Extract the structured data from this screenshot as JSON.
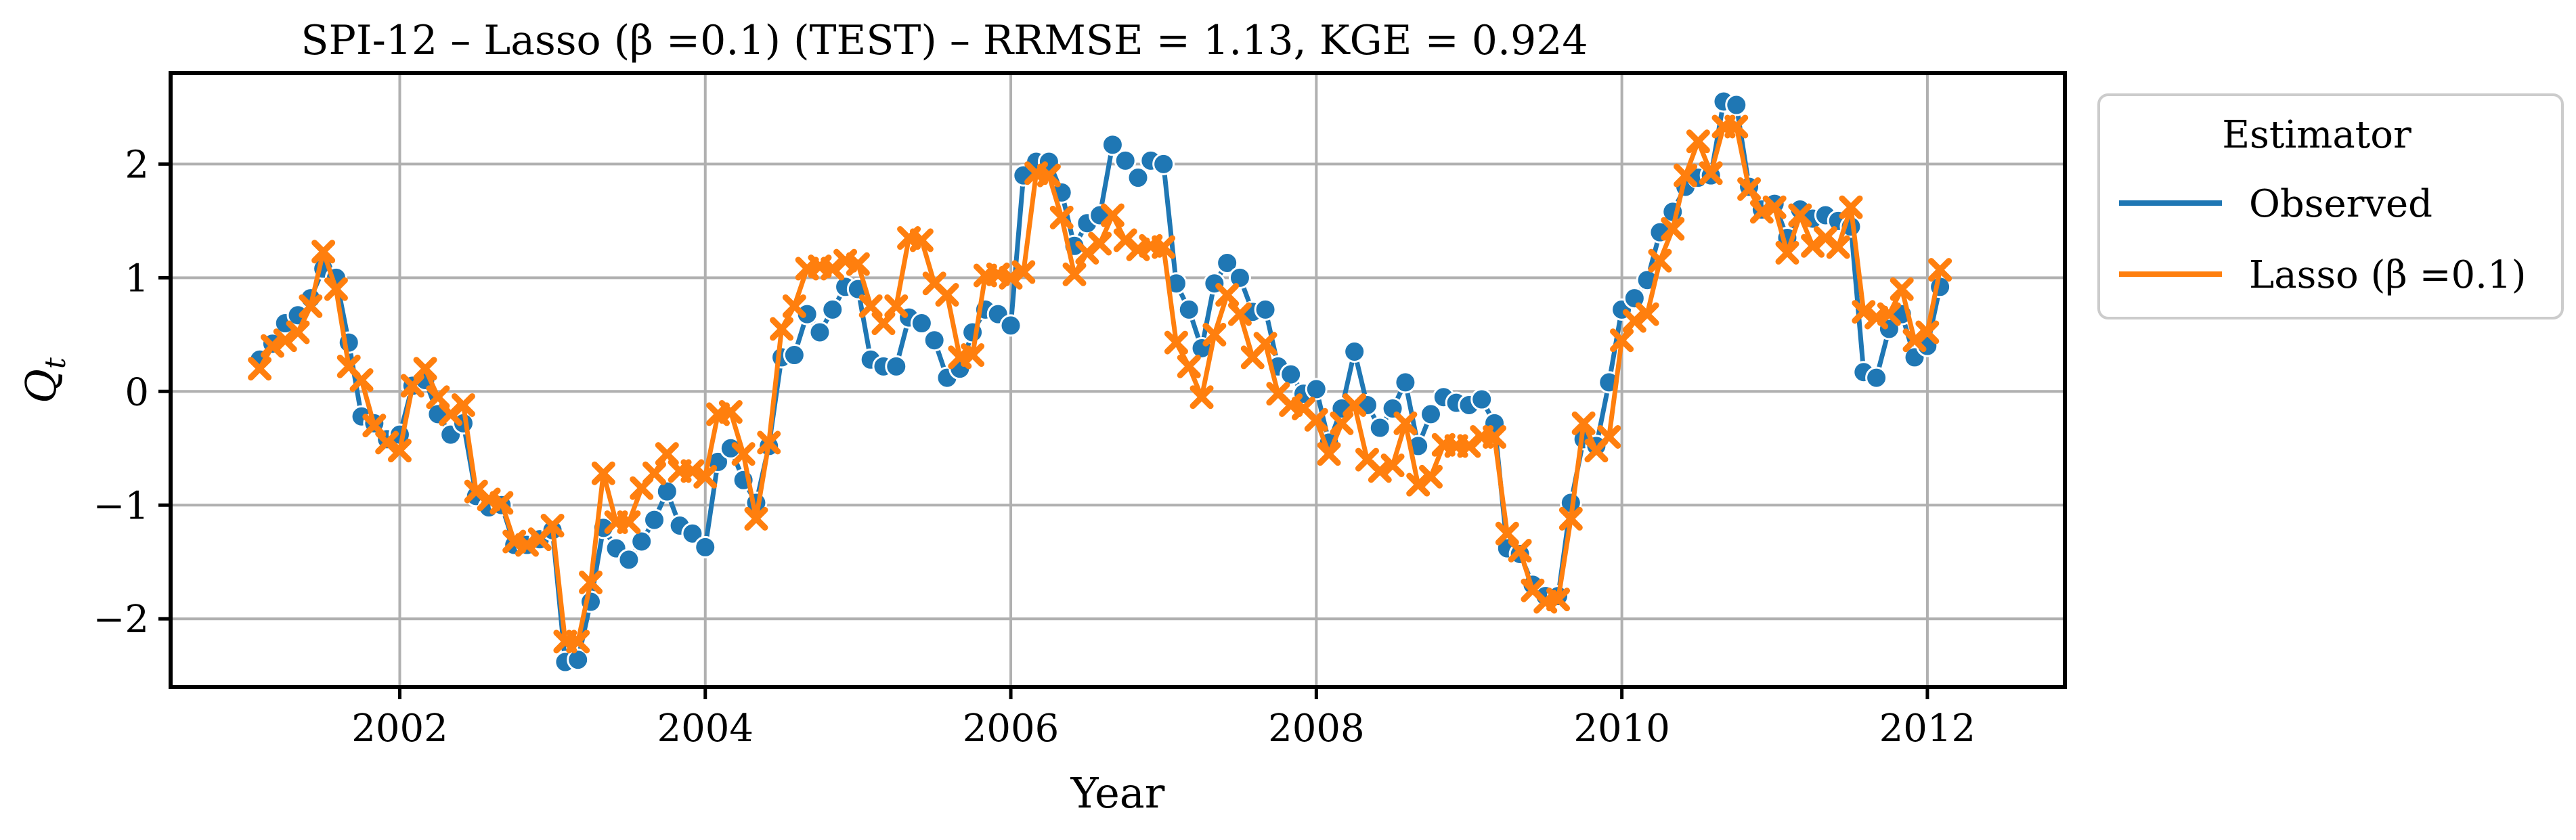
{
  "chart_data": {
    "type": "line",
    "title": "SPI-12 – Lasso (β =0.1) (TEST) – RRMSE = 1.13, KGE = 0.924",
    "xlabel": "Year",
    "ylabel": "Q_t",
    "xlim": [
      2000.5,
      2012.9
    ],
    "ylim": [
      -2.6,
      2.8
    ],
    "xticks": [
      2002,
      2004,
      2006,
      2008,
      2010,
      2012
    ],
    "yticks": [
      -2,
      -1,
      0,
      1,
      2
    ],
    "xtick_labels": [
      "2002",
      "2004",
      "2006",
      "2008",
      "2010",
      "2012"
    ],
    "ytick_labels": [
      "−2",
      "−1",
      "0",
      "1",
      "2"
    ],
    "grid": true,
    "legend": {
      "title": "Estimator",
      "placement": "outside-right",
      "entries": [
        "Observed",
        "Lasso (β =0.1)"
      ]
    },
    "x_start_year": 2001.0833,
    "x_step_years": 0.08333,
    "series": [
      {
        "name": "Observed",
        "color": "#1f77b4",
        "marker": "circle",
        "values": [
          0.28,
          0.42,
          0.6,
          0.67,
          0.82,
          1.08,
          1.0,
          0.43,
          -0.22,
          -0.28,
          -0.42,
          -0.38,
          0.05,
          0.1,
          -0.2,
          -0.38,
          -0.28,
          -0.92,
          -1.02,
          -1.0,
          -1.35,
          -1.35,
          -1.3,
          -1.22,
          -2.38,
          -2.36,
          -1.85,
          -1.2,
          -1.38,
          -1.48,
          -1.32,
          -1.13,
          -0.88,
          -1.18,
          -1.25,
          -1.37,
          -0.62,
          -0.5,
          -0.78,
          -0.98,
          -0.48,
          0.3,
          0.32,
          0.68,
          0.52,
          0.72,
          0.92,
          0.9,
          0.28,
          0.22,
          0.22,
          0.65,
          0.6,
          0.45,
          0.12,
          0.2,
          0.52,
          0.72,
          0.68,
          0.58,
          1.9,
          2.02,
          2.02,
          1.75,
          1.28,
          1.48,
          1.55,
          2.17,
          2.03,
          1.88,
          2.03,
          2.0,
          0.95,
          0.72,
          0.38,
          0.95,
          1.13,
          1.0,
          0.7,
          0.72,
          0.22,
          0.15,
          -0.02,
          0.02,
          -0.45,
          -0.15,
          0.35,
          -0.12,
          -0.32,
          -0.15,
          0.08,
          -0.48,
          -0.2,
          -0.05,
          -0.1,
          -0.12,
          -0.07,
          -0.28,
          -1.38,
          -1.43,
          -1.7,
          -1.8,
          -1.8,
          -0.98,
          -0.42,
          -0.48,
          0.08,
          0.72,
          0.82,
          0.98,
          1.4,
          1.58,
          1.8,
          1.88,
          1.9,
          2.55,
          2.52,
          1.8,
          1.6,
          1.65,
          1.35,
          1.6,
          1.52,
          1.55,
          1.5,
          1.45,
          0.17,
          0.12,
          0.55,
          0.68,
          0.3,
          0.4,
          0.92
        ]
      },
      {
        "name": "Lasso (β =0.1)",
        "color": "#ff7f0e",
        "marker": "x",
        "values": [
          0.2,
          0.4,
          0.45,
          0.52,
          0.75,
          1.23,
          0.9,
          0.22,
          0.1,
          -0.3,
          -0.45,
          -0.52,
          0.05,
          0.2,
          -0.05,
          -0.2,
          -0.12,
          -0.88,
          -0.95,
          -0.98,
          -1.32,
          -1.35,
          -1.3,
          -1.18,
          -2.2,
          -2.2,
          -1.68,
          -0.72,
          -1.15,
          -1.15,
          -0.85,
          -0.72,
          -0.55,
          -0.7,
          -0.7,
          -0.75,
          -0.2,
          -0.18,
          -0.55,
          -1.12,
          -0.45,
          0.55,
          0.75,
          1.08,
          1.1,
          1.08,
          1.15,
          1.12,
          0.75,
          0.6,
          0.75,
          1.35,
          1.33,
          0.95,
          0.85,
          0.3,
          0.32,
          1.02,
          1.03,
          1.0,
          1.05,
          1.92,
          1.9,
          1.53,
          1.03,
          1.22,
          1.3,
          1.55,
          1.33,
          1.25,
          1.28,
          1.27,
          0.43,
          0.22,
          -0.05,
          0.5,
          0.85,
          0.68,
          0.3,
          0.42,
          -0.02,
          -0.12,
          -0.15,
          -0.25,
          -0.55,
          -0.28,
          -0.12,
          -0.6,
          -0.7,
          -0.65,
          -0.28,
          -0.82,
          -0.75,
          -0.47,
          -0.48,
          -0.48,
          -0.4,
          -0.4,
          -1.25,
          -1.4,
          -1.75,
          -1.85,
          -1.83,
          -1.12,
          -0.28,
          -0.52,
          -0.4,
          0.45,
          0.62,
          0.68,
          1.15,
          1.43,
          1.9,
          2.2,
          1.92,
          2.33,
          2.33,
          1.78,
          1.58,
          1.62,
          1.22,
          1.55,
          1.28,
          1.35,
          1.27,
          1.62,
          0.7,
          0.65,
          0.68,
          0.9,
          0.45,
          0.52,
          1.07
        ]
      }
    ]
  }
}
